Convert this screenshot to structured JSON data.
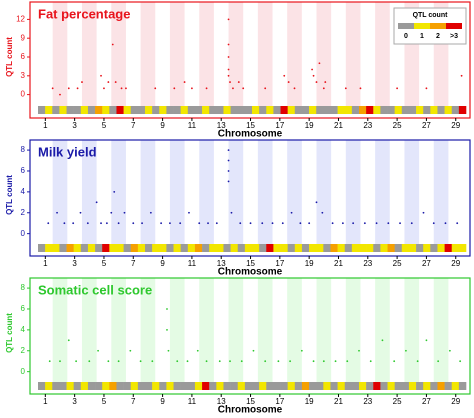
{
  "chart_data": [
    {
      "type": "scatter",
      "title": "Fat percentage",
      "xlabel": "Chromosome",
      "ylabel": "QTL count",
      "color": "#e8141c",
      "band_color": "#fbe3e6",
      "xlim": [
        0.5,
        29.7
      ],
      "xticks": [
        1,
        3,
        5,
        7,
        9,
        11,
        13,
        15,
        17,
        19,
        21,
        23,
        25,
        27,
        29
      ],
      "ylim": [
        -1.5,
        13.5
      ],
      "yticks": [
        0,
        3,
        6,
        9,
        12
      ],
      "x": [
        1.5,
        2.0,
        2.6,
        3.2,
        3.5,
        4.8,
        5.0,
        5.3,
        5.6,
        5.8,
        6.2,
        6.5,
        8.5,
        9.8,
        10.5,
        11.0,
        12.0,
        13.5,
        13.5,
        13.5,
        13.5,
        13.5,
        13.6,
        13.8,
        14.2,
        14.5,
        16.0,
        17.3,
        17.6,
        18.0,
        19.2,
        19.3,
        19.5,
        19.7,
        20.0,
        20.1,
        21.5,
        22.5,
        25.0,
        27.0,
        29.4
      ],
      "values": [
        1,
        0,
        1,
        1,
        2,
        3,
        1,
        2,
        8,
        2,
        1,
        1,
        1,
        1,
        2,
        1,
        1,
        12,
        8,
        6,
        4,
        3,
        2,
        1,
        2,
        1,
        1,
        3,
        2,
        1,
        4,
        3,
        2,
        5,
        1,
        2,
        1,
        1,
        1,
        1,
        3
      ],
      "strip": [
        0,
        1,
        0,
        1,
        0,
        0,
        1,
        0,
        2,
        1,
        0,
        3,
        1,
        0,
        0,
        1,
        0,
        1,
        0,
        0,
        1,
        0,
        0,
        1,
        0,
        0,
        1,
        0,
        0,
        0,
        1,
        0,
        1,
        0,
        3,
        1,
        0,
        0,
        1,
        0,
        0,
        0,
        1,
        1,
        0,
        2,
        3,
        1,
        0,
        0,
        1,
        0,
        0,
        1,
        0,
        1,
        0,
        1,
        0,
        3
      ],
      "legend": {
        "title": "QTL count",
        "items": [
          {
            "label": "0",
            "color": "#9a9a9a"
          },
          {
            "label": "1",
            "color": "#f2e600"
          },
          {
            "label": "2",
            "color": "#f5a000"
          },
          {
            "label": ">3",
            "color": "#e00000"
          }
        ]
      }
    },
    {
      "type": "scatter",
      "title": "Milk yield",
      "xlabel": "Chromosome",
      "ylabel": "QTL count",
      "color": "#1a1aa8",
      "band_color": "#e3e6fb",
      "xlim": [
        0.5,
        29.7
      ],
      "xticks": [
        1,
        3,
        5,
        7,
        9,
        11,
        13,
        15,
        17,
        19,
        21,
        23,
        25,
        27,
        29
      ],
      "ylim": [
        -0.8,
        8.2
      ],
      "yticks": [
        0,
        2,
        4,
        6,
        8
      ],
      "x": [
        1.2,
        1.8,
        2.3,
        2.9,
        3.4,
        3.9,
        4.5,
        4.8,
        5.2,
        5.5,
        5.7,
        6.0,
        6.4,
        7.0,
        7.6,
        8.2,
        8.9,
        9.5,
        10.2,
        10.8,
        11.5,
        12.1,
        12.7,
        13.5,
        13.5,
        13.5,
        13.5,
        13.7,
        14.3,
        15.0,
        15.8,
        16.5,
        17.2,
        17.8,
        18.4,
        19.0,
        19.5,
        19.9,
        20.6,
        21.3,
        22.0,
        22.8,
        23.6,
        24.4,
        25.2,
        26.0,
        26.8,
        27.5,
        28.3,
        29.1
      ],
      "values": [
        1,
        2,
        1,
        1,
        2,
        1,
        3,
        1,
        1,
        2,
        4,
        1,
        2,
        1,
        1,
        2,
        1,
        1,
        1,
        2,
        1,
        1,
        1,
        8,
        7,
        6,
        5,
        2,
        1,
        1,
        1,
        1,
        1,
        2,
        1,
        1,
        3,
        2,
        1,
        1,
        1,
        1,
        1,
        1,
        1,
        1,
        2,
        1,
        1,
        1
      ],
      "strip": [
        0,
        1,
        1,
        0,
        2,
        1,
        0,
        1,
        0,
        3,
        1,
        1,
        0,
        2,
        1,
        0,
        1,
        1,
        0,
        1,
        0,
        1,
        2,
        0,
        1,
        1,
        0,
        1,
        0,
        1,
        1,
        0,
        3,
        1,
        1,
        0,
        1,
        0,
        1,
        1,
        0,
        2,
        1,
        0,
        1,
        1,
        1,
        0,
        1,
        2,
        0,
        1,
        1,
        0,
        1,
        0,
        1,
        3,
        1,
        1
      ]
    },
    {
      "type": "scatter",
      "title": "Somatic cell score",
      "xlabel": "Chromosome",
      "ylabel": "QTL count",
      "color": "#2ec82e",
      "band_color": "#e4fbe4",
      "xlim": [
        0.5,
        29.7
      ],
      "xticks": [
        1,
        3,
        5,
        7,
        9,
        11,
        13,
        15,
        17,
        19,
        21,
        23,
        25,
        27,
        29
      ],
      "ylim": [
        -0.8,
        8.2
      ],
      "yticks": [
        0,
        2,
        4,
        6,
        8
      ],
      "x": [
        1.3,
        2.0,
        2.6,
        3.1,
        4.0,
        4.6,
        5.3,
        6.0,
        6.8,
        7.5,
        8.3,
        9.3,
        9.3,
        9.4,
        10.0,
        10.7,
        11.4,
        12.0,
        12.9,
        13.6,
        14.4,
        15.2,
        16.0,
        16.9,
        17.7,
        18.5,
        19.3,
        20.0,
        20.8,
        21.6,
        22.4,
        23.2,
        24.0,
        24.8,
        25.6,
        26.4,
        27.0,
        27.8,
        28.6,
        29.3
      ],
      "values": [
        1,
        1,
        3,
        1,
        1,
        2,
        1,
        1,
        2,
        1,
        1,
        6,
        4,
        2,
        1,
        1,
        2,
        1,
        1,
        1,
        1,
        2,
        1,
        1,
        1,
        2,
        1,
        1,
        1,
        1,
        2,
        1,
        3,
        1,
        2,
        1,
        3,
        1,
        2,
        1
      ],
      "strip": [
        0,
        1,
        0,
        0,
        1,
        0,
        1,
        0,
        0,
        1,
        2,
        0,
        0,
        1,
        0,
        0,
        1,
        0,
        1,
        0,
        0,
        0,
        1,
        3,
        0,
        1,
        0,
        0,
        1,
        0,
        0,
        1,
        0,
        0,
        0,
        1,
        0,
        2,
        0,
        0,
        1,
        0,
        1,
        0,
        0,
        1,
        0,
        3,
        0,
        1,
        0,
        0,
        1,
        0,
        1,
        0,
        2,
        0,
        1,
        0
      ]
    }
  ]
}
